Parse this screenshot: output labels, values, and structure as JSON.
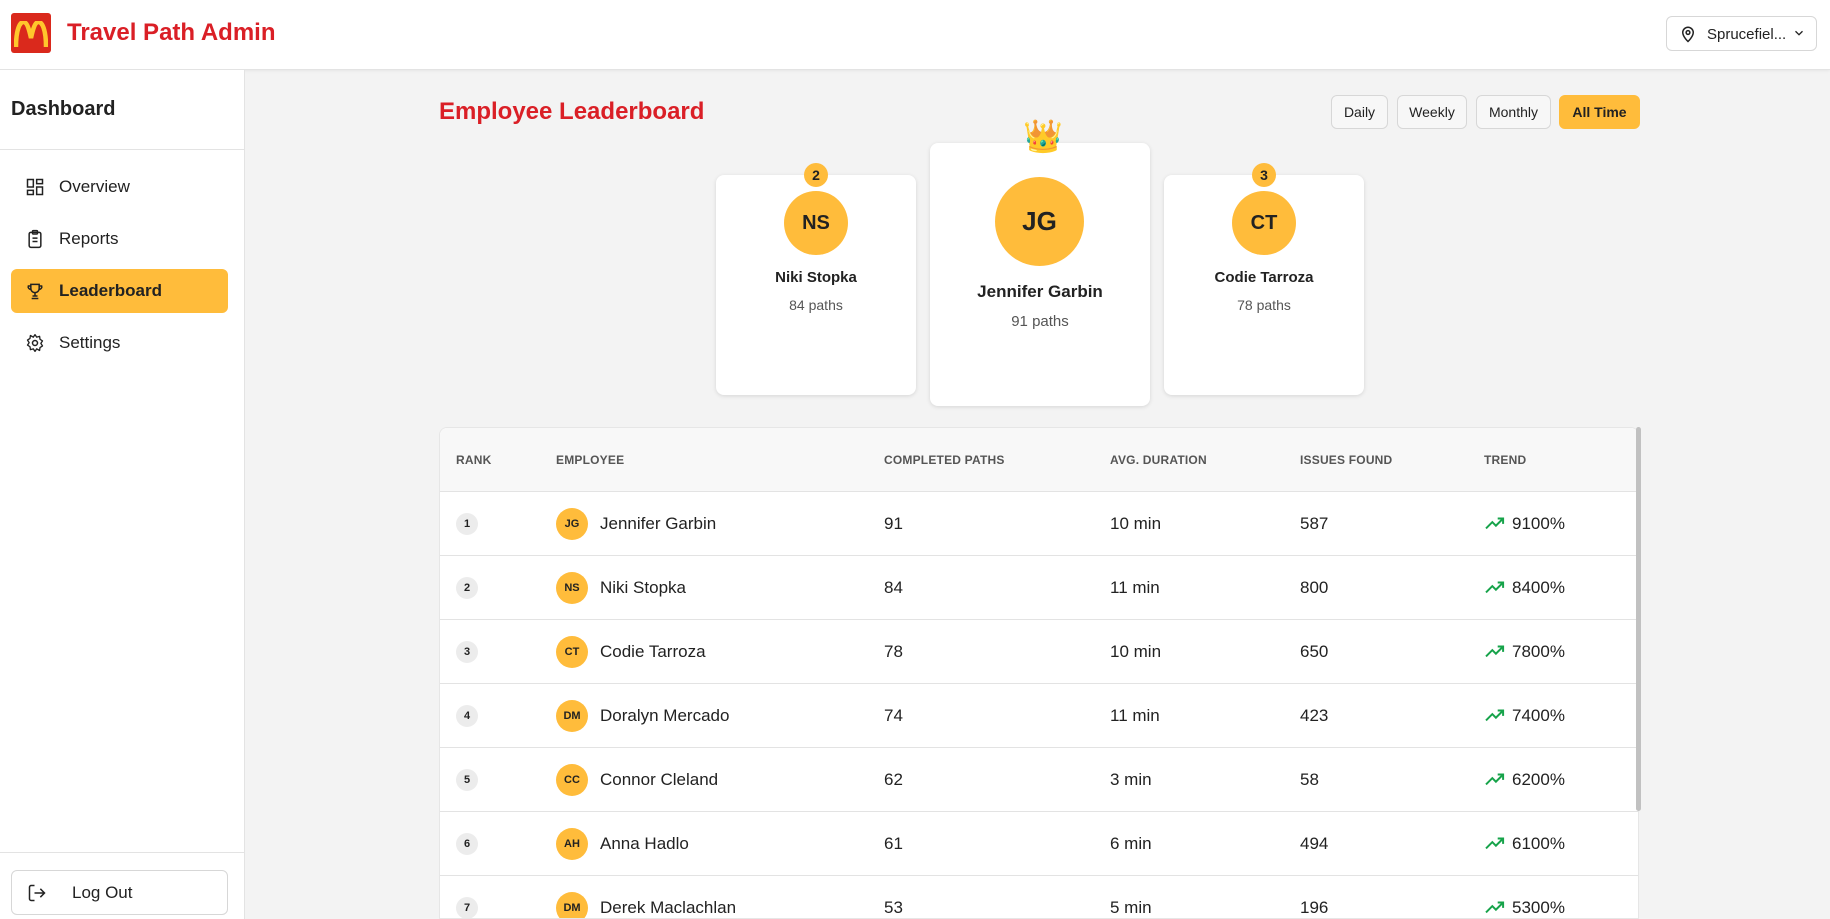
{
  "header": {
    "app_title": "Travel Path Admin",
    "location": "Sprucefiel...",
    "brand_color": "#da1f26",
    "accent_color": "#ffbc3b"
  },
  "sidebar": {
    "title": "Dashboard",
    "items": [
      {
        "label": "Overview",
        "icon": "grid-icon",
        "active": false
      },
      {
        "label": "Reports",
        "icon": "clipboard-icon",
        "active": false
      },
      {
        "label": "Leaderboard",
        "icon": "trophy-icon",
        "active": true
      },
      {
        "label": "Settings",
        "icon": "gear-icon",
        "active": false
      }
    ],
    "logout_label": "Log Out"
  },
  "main": {
    "title": "Employee Leaderboard",
    "filters": [
      "Daily",
      "Weekly",
      "Monthly",
      "All Time"
    ],
    "active_filter": "All Time",
    "podium": {
      "first": {
        "rank": "1",
        "initials": "JG",
        "name": "Jennifer Garbin",
        "paths": "91 paths",
        "crown": "👑"
      },
      "second": {
        "rank": "2",
        "initials": "NS",
        "name": "Niki Stopka",
        "paths": "84 paths"
      },
      "third": {
        "rank": "3",
        "initials": "CT",
        "name": "Codie Tarroza",
        "paths": "78 paths"
      }
    },
    "table": {
      "headers": [
        "RANK",
        "EMPLOYEE",
        "COMPLETED PATHS",
        "AVG. DURATION",
        "ISSUES FOUND",
        "TREND"
      ],
      "rows": [
        {
          "rank": "1",
          "initials": "JG",
          "name": "Jennifer Garbin",
          "paths": "91",
          "duration": "10 min",
          "issues": "587",
          "trend": "9100%"
        },
        {
          "rank": "2",
          "initials": "NS",
          "name": "Niki Stopka",
          "paths": "84",
          "duration": "11 min",
          "issues": "800",
          "trend": "8400%"
        },
        {
          "rank": "3",
          "initials": "CT",
          "name": "Codie Tarroza",
          "paths": "78",
          "duration": "10 min",
          "issues": "650",
          "trend": "7800%"
        },
        {
          "rank": "4",
          "initials": "DM",
          "name": "Doralyn Mercado",
          "paths": "74",
          "duration": "11 min",
          "issues": "423",
          "trend": "7400%"
        },
        {
          "rank": "5",
          "initials": "CC",
          "name": "Connor Cleland",
          "paths": "62",
          "duration": "3 min",
          "issues": "58",
          "trend": "6200%"
        },
        {
          "rank": "6",
          "initials": "AH",
          "name": "Anna Hadlo",
          "paths": "61",
          "duration": "6 min",
          "issues": "494",
          "trend": "6100%"
        },
        {
          "rank": "7",
          "initials": "DM",
          "name": "Derek Maclachlan",
          "paths": "53",
          "duration": "5 min",
          "issues": "196",
          "trend": "5300%"
        }
      ]
    }
  }
}
